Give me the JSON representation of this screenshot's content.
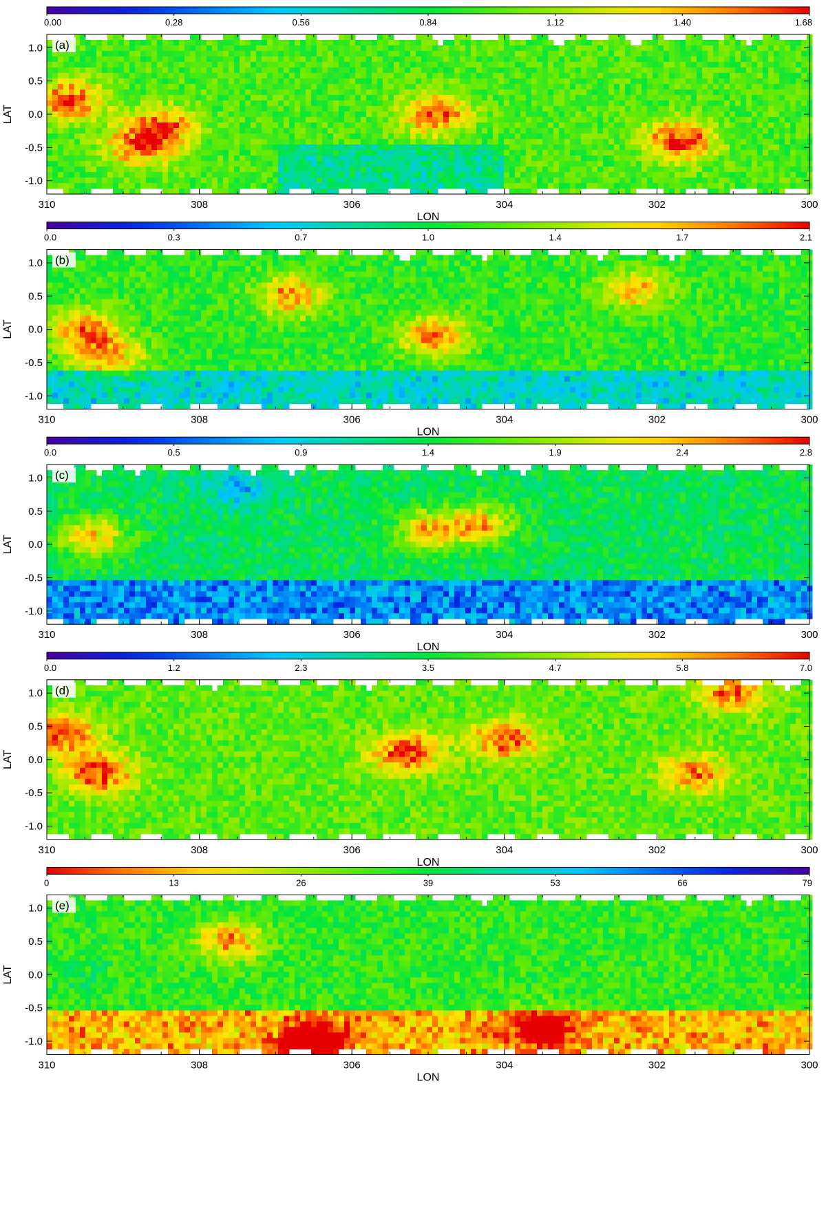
{
  "chart_data": [
    {
      "type": "heatmap",
      "panel_label": "(a)",
      "xlabel": "LON",
      "ylabel": "LAT",
      "xlim": [
        310,
        300
      ],
      "ylim": [
        -1.2,
        1.2
      ],
      "x_ticks": [
        "310",
        "308",
        "306",
        "304",
        "302",
        "300"
      ],
      "y_ticks": [
        "1.0",
        "0.5",
        "0.0",
        "-0.5",
        "-1.0"
      ],
      "colorbar": {
        "ticks": [
          "0.00",
          "0.28",
          "0.56",
          "0.84",
          "1.12",
          "1.40",
          "1.68"
        ],
        "min": 0,
        "max": 1.68,
        "reverse": false
      },
      "base_level": 0.58,
      "band": {
        "x_from": 307,
        "x_to": 304,
        "y_below": -0.45,
        "delta": -0.16
      },
      "features": [
        {
          "x": 309.7,
          "y": 0.2,
          "peak": 0.98
        },
        {
          "x": 308.5,
          "y": -0.2,
          "peak": 0.95
        },
        {
          "x": 308.8,
          "y": -0.5,
          "peak": 0.9
        },
        {
          "x": 304.9,
          "y": 0.0,
          "peak": 0.95
        },
        {
          "x": 301.7,
          "y": -0.4,
          "peak": 1.0
        }
      ]
    },
    {
      "type": "heatmap",
      "panel_label": "(b)",
      "xlabel": "LON",
      "ylabel": "LAT",
      "xlim": [
        310,
        300
      ],
      "ylim": [
        -1.2,
        1.2
      ],
      "x_ticks": [
        "310",
        "308",
        "306",
        "304",
        "302",
        "300"
      ],
      "y_ticks": [
        "1.0",
        "0.5",
        "0.0",
        "-0.5",
        "-1.0"
      ],
      "colorbar": {
        "ticks": [
          "0.0",
          "0.3",
          "0.7",
          "1.0",
          "1.4",
          "1.7",
          "2.1"
        ],
        "min": 0,
        "max": 2.1,
        "reverse": false
      },
      "base_level": 0.55,
      "band": {
        "x_from": 310,
        "x_to": 300,
        "y_below": -0.6,
        "delta": -0.2
      },
      "features": [
        {
          "x": 309.5,
          "y": 0.0,
          "peak": 0.9
        },
        {
          "x": 309.2,
          "y": -0.4,
          "peak": 0.88
        },
        {
          "x": 306.8,
          "y": 0.5,
          "peak": 0.9
        },
        {
          "x": 304.9,
          "y": -0.1,
          "peak": 0.92
        },
        {
          "x": 302.3,
          "y": 0.6,
          "peak": 0.85
        }
      ]
    },
    {
      "type": "heatmap",
      "panel_label": "(c)",
      "xlabel": "LON",
      "ylabel": "LAT",
      "xlim": [
        310,
        300
      ],
      "ylim": [
        -1.2,
        1.2
      ],
      "x_ticks": [
        "310",
        "308",
        "306",
        "304",
        "302",
        "300"
      ],
      "y_ticks": [
        "1.0",
        "0.5",
        "0.0",
        "-0.5",
        "-1.0"
      ],
      "colorbar": {
        "ticks": [
          "0.0",
          "0.5",
          "0.9",
          "1.4",
          "1.9",
          "2.4",
          "2.8"
        ],
        "min": 0,
        "max": 2.8,
        "reverse": false
      },
      "base_level": 0.48,
      "band": {
        "x_from": 310,
        "x_to": 300,
        "y_below": -0.5,
        "delta": -0.26
      },
      "features": [
        {
          "x": 309.4,
          "y": 0.1,
          "peak": 0.85
        },
        {
          "x": 305.0,
          "y": 0.2,
          "peak": 0.85
        },
        {
          "x": 304.3,
          "y": 0.3,
          "peak": 0.82
        },
        {
          "x": 307.5,
          "y": 0.85,
          "peak": 0.28
        }
      ]
    },
    {
      "type": "heatmap",
      "panel_label": "(d)",
      "xlabel": "LON",
      "ylabel": "LAT",
      "xlim": [
        310,
        300
      ],
      "ylim": [
        -1.2,
        1.2
      ],
      "x_ticks": [
        "310",
        "308",
        "306",
        "304",
        "302",
        "300"
      ],
      "y_ticks": [
        "1.0",
        "0.5",
        "0.0",
        "-0.5",
        "-1.0"
      ],
      "colorbar": {
        "ticks": [
          "0.0",
          "1.2",
          "2.3",
          "3.5",
          "4.7",
          "5.8",
          "7.0"
        ],
        "min": 0,
        "max": 7.0,
        "reverse": false
      },
      "base_level": 0.6,
      "band": null,
      "features": [
        {
          "x": 309.3,
          "y": -0.2,
          "peak": 1.0
        },
        {
          "x": 309.8,
          "y": 0.4,
          "peak": 0.98
        },
        {
          "x": 305.3,
          "y": 0.1,
          "peak": 1.0
        },
        {
          "x": 304.0,
          "y": 0.3,
          "peak": 0.95
        },
        {
          "x": 301.0,
          "y": 1.0,
          "peak": 0.95
        },
        {
          "x": 301.5,
          "y": -0.2,
          "peak": 0.9
        }
      ]
    },
    {
      "type": "heatmap",
      "panel_label": "(e)",
      "xlabel": "LON",
      "ylabel": "LAT",
      "xlim": [
        310,
        300
      ],
      "ylim": [
        -1.2,
        1.2
      ],
      "x_ticks": [
        "310",
        "308",
        "306",
        "304",
        "302",
        "300"
      ],
      "y_ticks": [
        "1.0",
        "0.5",
        "0.0",
        "-0.5",
        "-1.0"
      ],
      "colorbar": {
        "ticks": [
          "0",
          "13",
          "26",
          "39",
          "53",
          "66",
          "79"
        ],
        "min": 0,
        "max": 79,
        "reverse": true
      },
      "base_level": 0.55,
      "band": {
        "x_from": 310,
        "x_to": 300,
        "y_below": -0.5,
        "delta": 0.3
      },
      "features": [
        {
          "x": 307.6,
          "y": 0.5,
          "peak": 0.88
        },
        {
          "x": 306.5,
          "y": -1.0,
          "peak": 0.95
        },
        {
          "x": 303.5,
          "y": -0.8,
          "peak": 0.88
        },
        {
          "x": 309.6,
          "y": 0.0,
          "peak": 0.5
        }
      ]
    }
  ]
}
